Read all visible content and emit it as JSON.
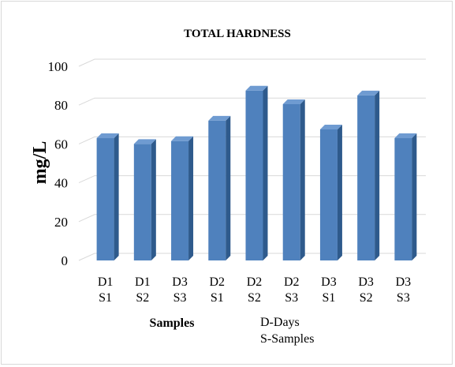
{
  "chart_data": {
    "type": "bar",
    "style": "3d-column",
    "title": "TOTAL HARDNESS",
    "xlabel": "Samples",
    "ylabel": "mg/L",
    "ylim": [
      0,
      100
    ],
    "yticks": [
      0,
      20,
      40,
      60,
      80,
      100
    ],
    "grid": true,
    "legend": "none",
    "categories": [
      [
        "D1",
        "S1"
      ],
      [
        "D1",
        "S2"
      ],
      [
        "D3",
        "S3"
      ],
      [
        "D2",
        "S1"
      ],
      [
        "D2",
        "S2"
      ],
      [
        "D2",
        "S3"
      ],
      [
        "D3",
        "S1"
      ],
      [
        "D3",
        "S2"
      ],
      [
        "D3",
        "S3"
      ]
    ],
    "values": [
      63,
      60,
      61.5,
      72,
      87.5,
      80.5,
      67.5,
      85,
      63
    ],
    "colors": {
      "bar_front": "#4F81BD",
      "bar_side": "#2E5A8C",
      "bar_top": "#6F9BD1",
      "grid": "#d9d9d9"
    }
  },
  "note": {
    "line1": "D-Days",
    "line2": "S-Samples"
  }
}
